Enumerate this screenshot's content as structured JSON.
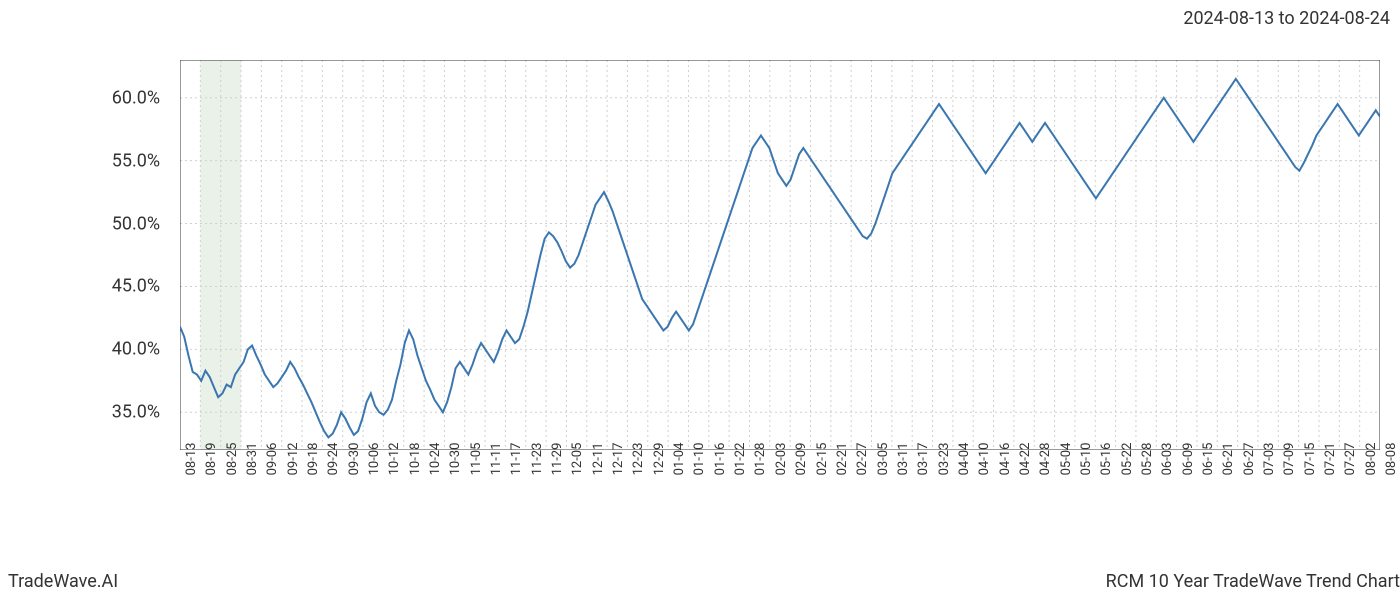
{
  "date_range": "2024-08-13 to 2024-08-24",
  "footer_left": "TradeWave.AI",
  "footer_right": "RCM 10 Year TradeWave Trend Chart",
  "chart": {
    "type": "line",
    "line_color": "#3a76b0",
    "line_width": 2,
    "background_color": "#ffffff",
    "grid_color": "#d0d0d0",
    "grid_dash": "2,3",
    "border_color": "#333333",
    "highlight_band": {
      "x_start": 1,
      "x_end": 3,
      "fill_color": "#dce8d8",
      "fill_opacity": 0.6
    },
    "ylim": [
      32,
      63
    ],
    "ytick_values": [
      35,
      40,
      45,
      50,
      55,
      60
    ],
    "ytick_labels": [
      "35.0%",
      "40.0%",
      "45.0%",
      "50.0%",
      "55.0%",
      "60.0%"
    ],
    "y_label_fontsize": 18,
    "x_label_fontsize": 13,
    "x_labels": [
      "08-13",
      "08-19",
      "08-25",
      "08-31",
      "09-06",
      "09-12",
      "09-18",
      "09-24",
      "09-30",
      "10-06",
      "10-12",
      "10-18",
      "10-24",
      "10-30",
      "11-05",
      "11-11",
      "11-17",
      "11-23",
      "11-29",
      "12-05",
      "12-11",
      "12-17",
      "12-23",
      "12-29",
      "01-04",
      "01-10",
      "01-16",
      "01-22",
      "01-28",
      "02-03",
      "02-09",
      "02-15",
      "02-21",
      "02-27",
      "03-05",
      "03-11",
      "03-17",
      "03-23",
      "04-04",
      "04-10",
      "04-16",
      "04-22",
      "04-28",
      "05-04",
      "05-10",
      "05-16",
      "05-22",
      "05-28",
      "06-03",
      "06-09",
      "06-15",
      "06-21",
      "06-27",
      "07-03",
      "07-09",
      "07-15",
      "07-21",
      "07-27",
      "08-02",
      "08-08"
    ],
    "values": [
      41.8,
      41.0,
      39.5,
      38.2,
      38.0,
      37.5,
      38.3,
      37.8,
      37.0,
      36.2,
      36.5,
      37.2,
      37.0,
      38.0,
      38.5,
      39.0,
      40.0,
      40.3,
      39.5,
      38.8,
      38.0,
      37.5,
      37.0,
      37.3,
      37.8,
      38.3,
      39.0,
      38.5,
      37.8,
      37.2,
      36.5,
      35.8,
      35.0,
      34.2,
      33.5,
      33.0,
      33.3,
      34.0,
      35.0,
      34.5,
      33.8,
      33.2,
      33.5,
      34.5,
      35.8,
      36.5,
      35.5,
      35.0,
      34.8,
      35.2,
      36.0,
      37.5,
      38.8,
      40.5,
      41.5,
      40.8,
      39.5,
      38.5,
      37.5,
      36.8,
      36.0,
      35.5,
      35.0,
      35.8,
      37.0,
      38.5,
      39.0,
      38.5,
      38.0,
      38.8,
      39.8,
      40.5,
      40.0,
      39.5,
      39.0,
      39.8,
      40.8,
      41.5,
      41.0,
      40.5,
      40.8,
      41.8,
      43.0,
      44.5,
      46.0,
      47.5,
      48.8,
      49.3,
      49.0,
      48.5,
      47.8,
      47.0,
      46.5,
      46.8,
      47.5,
      48.5,
      49.5,
      50.5,
      51.5,
      52.0,
      52.5,
      51.8,
      51.0,
      50.0,
      49.0,
      48.0,
      47.0,
      46.0,
      45.0,
      44.0,
      43.5,
      43.0,
      42.5,
      42.0,
      41.5,
      41.8,
      42.5,
      43.0,
      42.5,
      42.0,
      41.5,
      42.0,
      43.0,
      44.0,
      45.0,
      46.0,
      47.0,
      48.0,
      49.0,
      50.0,
      51.0,
      52.0,
      53.0,
      54.0,
      55.0,
      56.0,
      56.5,
      57.0,
      56.5,
      56.0,
      55.0,
      54.0,
      53.5,
      53.0,
      53.5,
      54.5,
      55.5,
      56.0,
      55.5,
      55.0,
      54.5,
      54.0,
      53.5,
      53.0,
      52.5,
      52.0,
      51.5,
      51.0,
      50.5,
      50.0,
      49.5,
      49.0,
      48.8,
      49.2,
      50.0,
      51.0,
      52.0,
      53.0,
      54.0,
      54.5,
      55.0,
      55.5,
      56.0,
      56.5,
      57.0,
      57.5,
      58.0,
      58.5,
      59.0,
      59.5,
      59.0,
      58.5,
      58.0,
      57.5,
      57.0,
      56.5,
      56.0,
      55.5,
      55.0,
      54.5,
      54.0,
      54.5,
      55.0,
      55.5,
      56.0,
      56.5,
      57.0,
      57.5,
      58.0,
      57.5,
      57.0,
      56.5,
      57.0,
      57.5,
      58.0,
      57.5,
      57.0,
      56.5,
      56.0,
      55.5,
      55.0,
      54.5,
      54.0,
      53.5,
      53.0,
      52.5,
      52.0,
      52.5,
      53.0,
      53.5,
      54.0,
      54.5,
      55.0,
      55.5,
      56.0,
      56.5,
      57.0,
      57.5,
      58.0,
      58.5,
      59.0,
      59.5,
      60.0,
      59.5,
      59.0,
      58.5,
      58.0,
      57.5,
      57.0,
      56.5,
      57.0,
      57.5,
      58.0,
      58.5,
      59.0,
      59.5,
      60.0,
      60.5,
      61.0,
      61.5,
      61.0,
      60.5,
      60.0,
      59.5,
      59.0,
      58.5,
      58.0,
      57.5,
      57.0,
      56.5,
      56.0,
      55.5,
      55.0,
      54.5,
      54.2,
      54.8,
      55.5,
      56.2,
      57.0,
      57.5,
      58.0,
      58.5,
      59.0,
      59.5,
      59.0,
      58.5,
      58.0,
      57.5,
      57.0,
      57.5,
      58.0,
      58.5,
      59.0,
      58.5
    ]
  }
}
